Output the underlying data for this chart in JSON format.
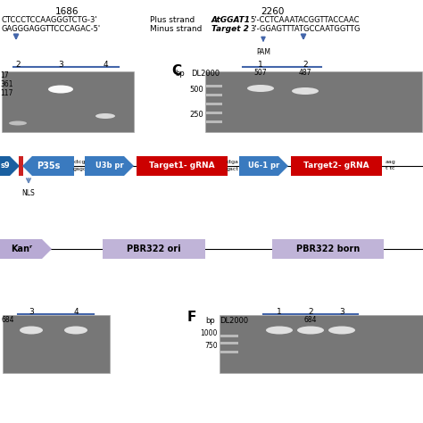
{
  "bg_color": "#ffffff",
  "top_text": {
    "num1": "1686",
    "num2": "2260",
    "plus_strand_label": "Plus strand",
    "minus_strand_label": "Minus strand",
    "seq1_plus": "CTCCCTCCAAGGGTCTG-3'",
    "seq1_minus": "GAGGGAGGTTCCCAGAC-5'",
    "atggat1_label": "AtGGAT1",
    "target2_label": "Target 2",
    "seq2_plus": "5'-CCTCAAATACGGTTACCAAC",
    "seq2_minus": "3'-GGAGTTTATGCCAATGGTTG",
    "pam_label": "PAM",
    "panel_c": "C"
  },
  "gel_b": {
    "label_2": "2",
    "label_3": "3",
    "label_4": "4",
    "size_17": "17",
    "size_361": "361",
    "size_117": "117"
  },
  "gel_c": {
    "dl2000": "DL2000",
    "lane1": "1",
    "lane2": "2",
    "size_507": "507",
    "size_487": "487",
    "bp_500": "500",
    "bp_250": "250",
    "bp_label": "bp"
  },
  "diagram_row1": {
    "cas9_color": "#1a5fa0",
    "cas9_label": "s9",
    "p35s_color": "#3a7abf",
    "p35s_label": "P35s",
    "u3b_color": "#3a7abf",
    "u3b_label": "U3b pr",
    "target1_color": "#cc0000",
    "target1_label": "Target1- gRNA",
    "u61_color": "#3a7abf",
    "u61_label": "U6-1 pr",
    "target2_color": "#cc0000",
    "target2_label": "Target2- gRNA",
    "linker1_top": "ctcg",
    "linker1_bot": "gagc",
    "linker2_top": "ctga",
    "linker2_bot": "gact",
    "nls_label": "NLS",
    "right_text1": "aag",
    "right_text2": "t tc"
  },
  "diagram_row2": {
    "kanr_color": "#b8aad4",
    "kanr_label": "Kanʳ",
    "pbr322ori_color": "#c0b4d8",
    "pbr322ori_label": "PBR322 ori",
    "pbr322born_color": "#c0b4d8",
    "pbr322born_label": "PBR322 born",
    "line_color": "#000000"
  },
  "gel_e": {
    "label_3": "3",
    "label_4": "4",
    "size_684": "684"
  },
  "gel_f": {
    "panel_f": "F",
    "dl2000": "DL2000",
    "lane1": "1",
    "lane2": "2",
    "lane3": "3",
    "size_684": "684",
    "bp_1000": "1000",
    "bp_750": "750",
    "bp_label": "bp"
  }
}
